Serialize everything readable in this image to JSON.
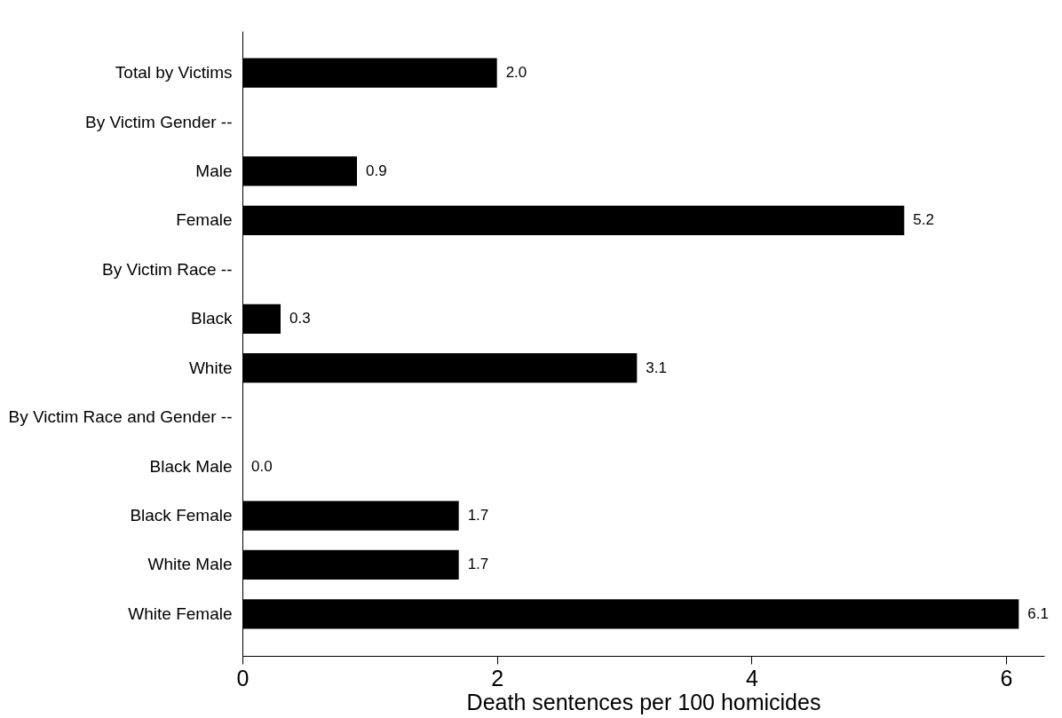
{
  "chart_data": {
    "type": "bar",
    "orientation": "horizontal",
    "xlabel": "Death sentences per 100 homicides",
    "categories": [
      "Total by Victims",
      "By Victim Gender --",
      "Male",
      "Female",
      "By Victim Race --",
      "Black",
      "White",
      "By Victim Race and Gender --",
      "Black Male",
      "Black Female",
      "White Male",
      "White Female"
    ],
    "values": [
      2.0,
      null,
      0.9,
      5.2,
      null,
      0.3,
      3.1,
      null,
      0.0,
      1.7,
      1.7,
      6.1
    ],
    "value_labels": [
      "2.0",
      null,
      "0.9",
      "5.2",
      null,
      "0.3",
      "3.1",
      null,
      "0.0",
      "1.7",
      "1.7",
      "6.1"
    ],
    "color": "#000000",
    "xlim": [
      0,
      6.3
    ],
    "xticks": [
      0,
      2,
      4,
      6
    ]
  }
}
